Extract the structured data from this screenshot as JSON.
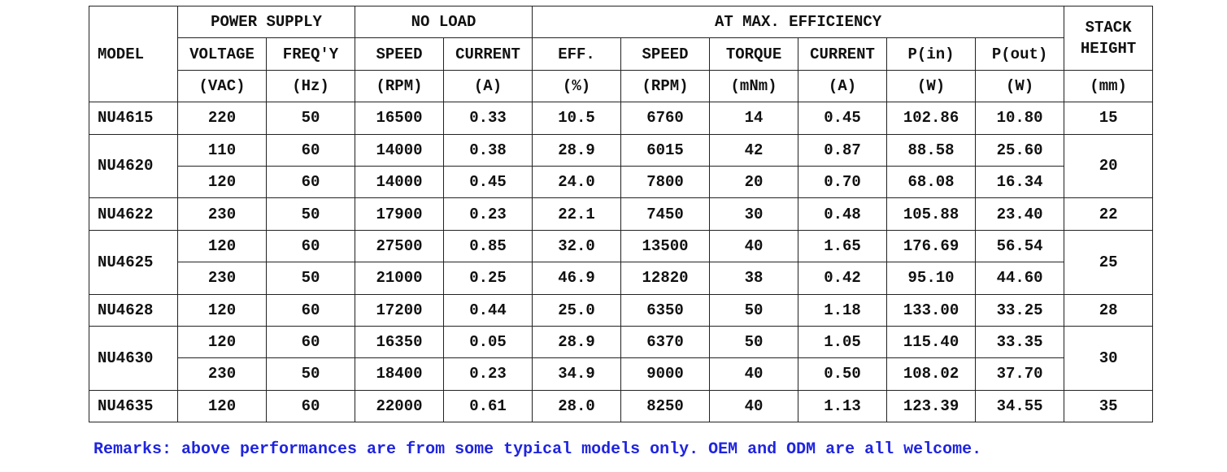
{
  "header": {
    "model": "MODEL",
    "power_supply": "POWER SUPPLY",
    "no_load": "NO LOAD",
    "at_max_efficiency": "AT MAX. EFFICIENCY",
    "stack_height": "STACK HEIGHT",
    "columns": [
      "VOLTAGE",
      "FREQ'Y",
      "SPEED",
      "CURRENT",
      "EFF.",
      "SPEED",
      "TORQUE",
      "CURRENT",
      "P(in)",
      "P(out)"
    ],
    "units": [
      "(VAC)",
      "(Hz)",
      "(RPM)",
      "(A)",
      "(%)",
      "(RPM)",
      "(mNm)",
      "(A)",
      "(W)",
      "(W)",
      "(mm)"
    ]
  },
  "models": [
    {
      "model": "NU4615",
      "stack": "15",
      "rows": [
        [
          "220",
          "50",
          "16500",
          "0.33",
          "10.5",
          "6760",
          "14",
          "0.45",
          "102.86",
          "10.80"
        ]
      ]
    },
    {
      "model": "NU4620",
      "stack": "20",
      "rows": [
        [
          "110",
          "60",
          "14000",
          "0.38",
          "28.9",
          "6015",
          "42",
          "0.87",
          "88.58",
          "25.60"
        ],
        [
          "120",
          "60",
          "14000",
          "0.45",
          "24.0",
          "7800",
          "20",
          "0.70",
          "68.08",
          "16.34"
        ]
      ]
    },
    {
      "model": "NU4622",
      "stack": "22",
      "rows": [
        [
          "230",
          "50",
          "17900",
          "0.23",
          "22.1",
          "7450",
          "30",
          "0.48",
          "105.88",
          "23.40"
        ]
      ]
    },
    {
      "model": "NU4625",
      "stack": "25",
      "rows": [
        [
          "120",
          "60",
          "27500",
          "0.85",
          "32.0",
          "13500",
          "40",
          "1.65",
          "176.69",
          "56.54"
        ],
        [
          "230",
          "50",
          "21000",
          "0.25",
          "46.9",
          "12820",
          "38",
          "0.42",
          "95.10",
          "44.60"
        ]
      ]
    },
    {
      "model": "NU4628",
      "stack": "28",
      "rows": [
        [
          "120",
          "60",
          "17200",
          "0.44",
          "25.0",
          "6350",
          "50",
          "1.18",
          "133.00",
          "33.25"
        ]
      ]
    },
    {
      "model": "NU4630",
      "stack": "30",
      "rows": [
        [
          "120",
          "60",
          "16350",
          "0.05",
          "28.9",
          "6370",
          "50",
          "1.05",
          "115.40",
          "33.35"
        ],
        [
          "230",
          "50",
          "18400",
          "0.23",
          "34.9",
          "9000",
          "40",
          "0.50",
          "108.02",
          "37.70"
        ]
      ]
    },
    {
      "model": "NU4635",
      "stack": "35",
      "rows": [
        [
          "120",
          "60",
          "22000",
          "0.61",
          "28.0",
          "8250",
          "40",
          "1.13",
          "123.39",
          "34.55"
        ]
      ]
    }
  ],
  "remarks": "Remarks: above performances are from some typical models only. OEM and ODM are all welcome."
}
